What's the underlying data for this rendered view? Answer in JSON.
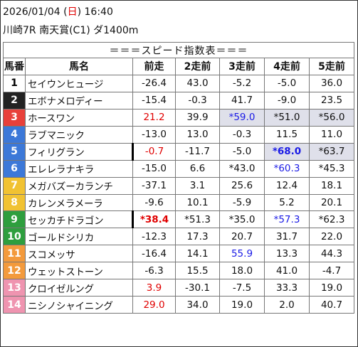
{
  "header": {
    "date": "2026/01/04 (",
    "weekday": "日",
    "time_suffix": ") 16:40",
    "race": "川崎7R 南天賞(C1) ダ1400m"
  },
  "table": {
    "title": "＝＝＝スピード指数表＝＝＝",
    "columns": [
      "馬番",
      "馬名",
      "前走",
      "2走前",
      "3走前",
      "4走前",
      "5走前"
    ],
    "rows": [
      {
        "num": "1",
        "num_bg": "#ffffff",
        "num_fg": "#000000",
        "name": "セイウンヒュージ",
        "cells": [
          {
            "v": "-26.4"
          },
          {
            "v": "43.0"
          },
          {
            "v": "-5.2"
          },
          {
            "v": "-5.0"
          },
          {
            "v": "36.0"
          }
        ]
      },
      {
        "num": "2",
        "num_bg": "#222222",
        "num_fg": "#ffffff",
        "name": "エボナメロディー",
        "cells": [
          {
            "v": "-15.4"
          },
          {
            "v": "-0.3"
          },
          {
            "v": "41.7"
          },
          {
            "v": "-9.0"
          },
          {
            "v": "23.5"
          }
        ]
      },
      {
        "num": "3",
        "num_bg": "#e8403a",
        "num_fg": "#ffffff",
        "name": "ホースワン",
        "cells": [
          {
            "v": "21.2",
            "color": "red"
          },
          {
            "v": "39.9"
          },
          {
            "v": "*59.0",
            "color": "blue",
            "shade": true
          },
          {
            "v": "*51.0",
            "shade": true
          },
          {
            "v": "*56.0",
            "shade": true
          }
        ]
      },
      {
        "num": "4",
        "num_bg": "#3c78d8",
        "num_fg": "#ffffff",
        "name": "ラブマニック",
        "cells": [
          {
            "v": "-13.0"
          },
          {
            "v": "13.0"
          },
          {
            "v": "-0.3"
          },
          {
            "v": "11.5"
          },
          {
            "v": "11.0"
          }
        ]
      },
      {
        "num": "5",
        "num_bg": "#3c78d8",
        "num_fg": "#ffffff",
        "name": "フィリグラン",
        "cells": [
          {
            "v": "-0.7",
            "color": "red",
            "bar": true
          },
          {
            "v": "-11.7"
          },
          {
            "v": "-5.0"
          },
          {
            "v": "*68.0",
            "color": "blue",
            "bold": true,
            "shade": true
          },
          {
            "v": "*63.7",
            "shade": true
          }
        ]
      },
      {
        "num": "6",
        "num_bg": "#3c78d8",
        "num_fg": "#ffffff",
        "name": "エレレラナキラ",
        "cells": [
          {
            "v": "-15.0"
          },
          {
            "v": "6.6"
          },
          {
            "v": "*43.0"
          },
          {
            "v": "*60.3",
            "color": "blue"
          },
          {
            "v": "*45.3"
          }
        ]
      },
      {
        "num": "7",
        "num_bg": "#f1c232",
        "num_fg": "#ffffff",
        "name": "メガバズーカランチ",
        "cells": [
          {
            "v": "-37.1"
          },
          {
            "v": "3.1"
          },
          {
            "v": "25.6"
          },
          {
            "v": "12.4"
          },
          {
            "v": "18.1"
          }
        ]
      },
      {
        "num": "8",
        "num_bg": "#f1c232",
        "num_fg": "#ffffff",
        "name": "カレンメラメーラ",
        "cells": [
          {
            "v": "-9.6"
          },
          {
            "v": "10.1"
          },
          {
            "v": "-5.9"
          },
          {
            "v": "5.2"
          },
          {
            "v": "20.1"
          }
        ]
      },
      {
        "num": "9",
        "num_bg": "#2e9e3e",
        "num_fg": "#ffffff",
        "name": "セッカチドラゴン",
        "cells": [
          {
            "v": "*38.4",
            "color": "red",
            "bold": true,
            "bar": true
          },
          {
            "v": "*51.3"
          },
          {
            "v": "*35.0"
          },
          {
            "v": "*57.3",
            "color": "blue"
          },
          {
            "v": "*62.3"
          }
        ]
      },
      {
        "num": "10",
        "num_bg": "#2e9e3e",
        "num_fg": "#ffffff",
        "name": "ゴールドシリカ",
        "cells": [
          {
            "v": "-12.3"
          },
          {
            "v": "17.3"
          },
          {
            "v": "20.7"
          },
          {
            "v": "31.7"
          },
          {
            "v": "22.0"
          }
        ]
      },
      {
        "num": "11",
        "num_bg": "#f39a3c",
        "num_fg": "#ffffff",
        "name": "スコメッサ",
        "cells": [
          {
            "v": "-16.4"
          },
          {
            "v": "14.1"
          },
          {
            "v": "55.9",
            "color": "blue"
          },
          {
            "v": "13.3"
          },
          {
            "v": "44.3"
          }
        ]
      },
      {
        "num": "12",
        "num_bg": "#f39a3c",
        "num_fg": "#ffffff",
        "name": "ウェットストーン",
        "cells": [
          {
            "v": "-6.3"
          },
          {
            "v": "15.5"
          },
          {
            "v": "18.0"
          },
          {
            "v": "41.0"
          },
          {
            "v": "-4.7"
          }
        ]
      },
      {
        "num": "13",
        "num_bg": "#ef94b0",
        "num_fg": "#ffffff",
        "name": "クロイゼルング",
        "cells": [
          {
            "v": "3.9",
            "color": "red"
          },
          {
            "v": "-30.1"
          },
          {
            "v": "-7.5"
          },
          {
            "v": "33.3"
          },
          {
            "v": "19.0"
          }
        ]
      },
      {
        "num": "14",
        "num_bg": "#ef94b0",
        "num_fg": "#ffffff",
        "name": "ニシノシャイニング",
        "cells": [
          {
            "v": "29.0",
            "color": "red"
          },
          {
            "v": "34.0"
          },
          {
            "v": "19.0"
          },
          {
            "v": "2.0"
          },
          {
            "v": "40.7"
          }
        ]
      }
    ]
  }
}
